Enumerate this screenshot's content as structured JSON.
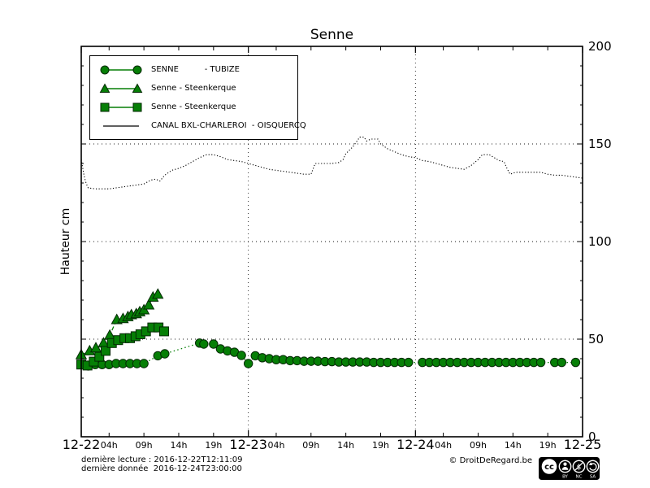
{
  "title": "Senne",
  "ylabel": "Hauteur cm",
  "colors": {
    "series_green": "#067f06",
    "ink": "#000000"
  },
  "legend": {
    "items": [
      {
        "label": "SENNE          - TUBIZE",
        "marker": "circle"
      },
      {
        "label": "Senne - Steenkerque",
        "marker": "triangle"
      },
      {
        "label": "Senne - Steenkerque",
        "marker": "square"
      },
      {
        "label": "CANAL BXL-CHARLEROI  - OISQUERCQ",
        "marker": "line"
      }
    ]
  },
  "footer": {
    "last_reading": "dernière lecture : 2016-12-22T12:11:09",
    "last_data": "dernière donnée  2016-12-24T23:00:00",
    "copyright": "© DroitDeRegard.be",
    "license_cc": "cc",
    "license_labels": [
      "BY",
      "NC",
      "SA"
    ]
  },
  "chart_data": {
    "type": "line",
    "title": "Senne",
    "xlabel": "",
    "ylabel": "Hauteur cm",
    "ylim": [
      0,
      200
    ],
    "x_unit": "hours since 2016-12-22T00:00",
    "x_range_hours": [
      0,
      72
    ],
    "grid": {
      "horizontal_values": [
        50,
        100,
        150
      ],
      "vertical_hours": [
        24,
        48
      ]
    },
    "legend_position": "upper left",
    "yticks": [
      {
        "label": "0",
        "value": 0
      },
      {
        "label": "50",
        "value": 50
      },
      {
        "label": "100",
        "value": 100
      },
      {
        "label": "150",
        "value": 150
      },
      {
        "label": "200",
        "value": 200
      }
    ],
    "ytick_minor_step": 10,
    "xticks_days": [
      {
        "label": "12-22",
        "hour": 0
      },
      {
        "label": "12-23",
        "hour": 24
      },
      {
        "label": "12-24",
        "hour": 48
      },
      {
        "label": "12-25",
        "hour": 72
      }
    ],
    "xticks_hours": [
      {
        "label": "04h",
        "hour": 4
      },
      {
        "label": "09h",
        "hour": 9
      },
      {
        "label": "14h",
        "hour": 14
      },
      {
        "label": "19h",
        "hour": 19
      },
      {
        "label": "04h",
        "hour": 28
      },
      {
        "label": "09h",
        "hour": 33
      },
      {
        "label": "14h",
        "hour": 38
      },
      {
        "label": "19h",
        "hour": 43
      },
      {
        "label": "04h",
        "hour": 52
      },
      {
        "label": "09h",
        "hour": 57
      },
      {
        "label": "14h",
        "hour": 62
      },
      {
        "label": "19h",
        "hour": 67
      }
    ],
    "series": [
      {
        "name": "SENNE - TUBIZE",
        "marker": "circle",
        "color": "#067f06",
        "linestyle": "dotted",
        "points": [
          [
            0,
            37
          ],
          [
            1,
            36.3
          ],
          [
            2,
            37
          ],
          [
            3,
            37
          ],
          [
            4,
            37
          ],
          [
            5,
            37.5
          ],
          [
            6,
            37.5
          ],
          [
            7,
            37.5
          ],
          [
            8,
            37.5
          ],
          [
            9,
            37.5
          ],
          [
            11,
            41.5
          ],
          [
            12,
            42.5
          ],
          [
            17,
            48
          ],
          [
            17.6,
            47.5
          ],
          [
            19,
            47.5
          ],
          [
            20,
            45
          ],
          [
            21,
            44
          ],
          [
            22,
            43.3
          ],
          [
            23,
            41.7
          ],
          [
            24,
            37.5
          ],
          [
            25,
            41.5
          ],
          [
            26,
            40.5
          ],
          [
            27,
            40
          ],
          [
            28,
            39.5
          ],
          [
            29,
            39.5
          ],
          [
            30,
            39
          ],
          [
            31,
            39
          ],
          [
            32,
            38.7
          ],
          [
            33,
            38.7
          ],
          [
            34,
            38.7
          ],
          [
            35,
            38.5
          ],
          [
            36,
            38.5
          ],
          [
            37,
            38.3
          ],
          [
            38,
            38.3
          ],
          [
            39,
            38.3
          ],
          [
            40,
            38.3
          ],
          [
            41,
            38.3
          ],
          [
            42,
            38.1
          ],
          [
            43,
            38.1
          ],
          [
            44,
            38.1
          ],
          [
            45,
            38.1
          ],
          [
            46,
            38.1
          ],
          [
            47,
            38.1
          ],
          [
            49,
            38.1
          ],
          [
            50,
            38.1
          ],
          [
            51,
            38.1
          ],
          [
            52,
            38.1
          ],
          [
            53,
            38.1
          ],
          [
            54,
            38.1
          ],
          [
            55,
            38.1
          ],
          [
            56,
            38.1
          ],
          [
            57,
            38.1
          ],
          [
            58,
            38.1
          ],
          [
            59,
            38.1
          ],
          [
            60,
            38.1
          ],
          [
            61,
            38.1
          ],
          [
            62,
            38.1
          ],
          [
            63,
            38.1
          ],
          [
            64,
            38.1
          ],
          [
            65,
            38.1
          ],
          [
            66,
            38.1
          ],
          [
            68,
            38.1
          ],
          [
            69,
            38.1
          ],
          [
            71,
            38.1
          ]
        ]
      },
      {
        "name": "Senne - Steenkerque",
        "marker": "triangle",
        "color": "#067f06",
        "linestyle": "dashdot",
        "points": [
          [
            0,
            42
          ],
          [
            1.2,
            44
          ],
          [
            2.1,
            45.5
          ],
          [
            3.2,
            48
          ],
          [
            4.1,
            52
          ],
          [
            5.1,
            60
          ],
          [
            6,
            60.5
          ],
          [
            6.7,
            61.5
          ],
          [
            7.2,
            62.5
          ],
          [
            7.9,
            63
          ],
          [
            8.4,
            64
          ],
          [
            9,
            65
          ],
          [
            9.7,
            67.5
          ],
          [
            10.3,
            71.5
          ],
          [
            11,
            73
          ]
        ]
      },
      {
        "name": "Senne - Steenkerque",
        "marker": "square",
        "color": "#067f06",
        "linestyle": "dashdot",
        "points": [
          [
            0,
            37
          ],
          [
            0.9,
            36.5
          ],
          [
            1.8,
            38.5
          ],
          [
            2.6,
            41
          ],
          [
            3.5,
            44
          ],
          [
            4.4,
            48
          ],
          [
            5.3,
            49.5
          ],
          [
            6.2,
            50.5
          ],
          [
            7,
            50.5
          ],
          [
            7.8,
            51.5
          ],
          [
            8.5,
            52.5
          ],
          [
            9.3,
            54
          ],
          [
            10.2,
            56
          ],
          [
            11.1,
            56
          ],
          [
            11.9,
            54
          ]
        ]
      },
      {
        "name": "CANAL BXL-CHARLEROI - OISQUERCQ",
        "marker": "none",
        "color": "#000000",
        "linestyle": "densely-dotted",
        "points": [
          [
            0,
            142
          ],
          [
            0.2,
            138
          ],
          [
            0.4,
            134
          ],
          [
            0.6,
            131
          ],
          [
            0.8,
            129
          ],
          [
            1,
            127.5
          ],
          [
            2,
            127
          ],
          [
            3,
            127
          ],
          [
            4,
            127
          ],
          [
            5,
            127.5
          ],
          [
            6,
            128
          ],
          [
            7,
            128.5
          ],
          [
            8,
            129
          ],
          [
            9,
            129.5
          ],
          [
            10,
            131.5
          ],
          [
            10.7,
            132
          ],
          [
            11.3,
            131
          ],
          [
            12,
            134
          ],
          [
            13,
            136.5
          ],
          [
            14,
            137.5
          ],
          [
            15,
            139
          ],
          [
            16,
            141
          ],
          [
            17,
            143
          ],
          [
            18,
            144.5
          ],
          [
            19,
            144.5
          ],
          [
            20,
            143.5
          ],
          [
            21,
            142
          ],
          [
            22,
            141.5
          ],
          [
            23,
            141
          ],
          [
            24,
            140
          ],
          [
            25,
            139
          ],
          [
            26,
            138
          ],
          [
            27,
            137
          ],
          [
            28,
            136.5
          ],
          [
            29,
            136
          ],
          [
            30,
            135.5
          ],
          [
            31,
            135
          ],
          [
            32,
            134.5
          ],
          [
            33,
            134.5
          ],
          [
            33.6,
            140
          ],
          [
            34,
            140
          ],
          [
            35,
            140
          ],
          [
            36,
            140
          ],
          [
            37,
            140.5
          ],
          [
            37.6,
            142
          ],
          [
            38,
            145
          ],
          [
            39,
            148.5
          ],
          [
            39.6,
            151.5
          ],
          [
            40,
            153.5
          ],
          [
            40.6,
            153.5
          ],
          [
            41,
            151.5
          ],
          [
            41.6,
            152.5
          ],
          [
            42.6,
            152.5
          ],
          [
            43,
            150
          ],
          [
            44,
            147.5
          ],
          [
            45,
            146
          ],
          [
            46,
            144.5
          ],
          [
            47,
            143.5
          ],
          [
            48,
            143
          ],
          [
            49,
            141.5
          ],
          [
            50,
            141
          ],
          [
            51,
            140
          ],
          [
            52,
            139
          ],
          [
            53,
            138
          ],
          [
            54,
            137.5
          ],
          [
            55,
            137
          ],
          [
            56,
            139
          ],
          [
            57,
            142
          ],
          [
            57.6,
            144.5
          ],
          [
            58.6,
            144.5
          ],
          [
            59.3,
            143
          ],
          [
            60,
            141.5
          ],
          [
            60.7,
            141
          ],
          [
            61.2,
            137
          ],
          [
            61.6,
            134.5
          ],
          [
            62.4,
            135.5
          ],
          [
            63,
            135.5
          ],
          [
            64,
            135.5
          ],
          [
            65,
            135.5
          ],
          [
            66,
            135.5
          ],
          [
            67,
            134.5
          ],
          [
            68,
            134
          ],
          [
            69,
            134
          ],
          [
            70,
            133.5
          ],
          [
            71,
            133
          ],
          [
            72,
            132.5
          ]
        ]
      }
    ]
  }
}
